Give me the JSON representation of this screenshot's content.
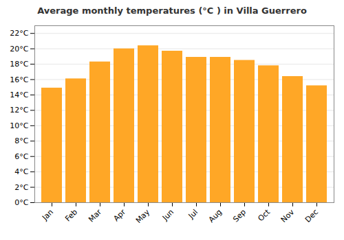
{
  "chart_data": {
    "type": "bar",
    "title": "Average monthly temperatures (°C ) in Villa Guerrero",
    "categories": [
      "Jan",
      "Feb",
      "Mar",
      "Apr",
      "May",
      "Jun",
      "Jul",
      "Aug",
      "Sep",
      "Oct",
      "Nov",
      "Dec"
    ],
    "values": [
      14.9,
      16.1,
      18.3,
      20.0,
      20.4,
      19.7,
      18.9,
      18.9,
      18.5,
      17.8,
      16.4,
      15.2
    ],
    "color": "#FFA726",
    "ylim": [
      0,
      23
    ],
    "yticks": [
      {
        "value": 0,
        "label": "0°C"
      },
      {
        "value": 2,
        "label": "2°C"
      },
      {
        "value": 4,
        "label": "4°C"
      },
      {
        "value": 6,
        "label": "6°C"
      },
      {
        "value": 8,
        "label": "8°C"
      },
      {
        "value": 10,
        "label": "10°C"
      },
      {
        "value": 12,
        "label": "12°C"
      },
      {
        "value": 14,
        "label": "14°C"
      },
      {
        "value": 16,
        "label": "16°C"
      },
      {
        "value": 18,
        "label": "18°C"
      },
      {
        "value": 20,
        "label": "20°C"
      },
      {
        "value": 22,
        "label": "22°C"
      }
    ],
    "grid": true
  }
}
